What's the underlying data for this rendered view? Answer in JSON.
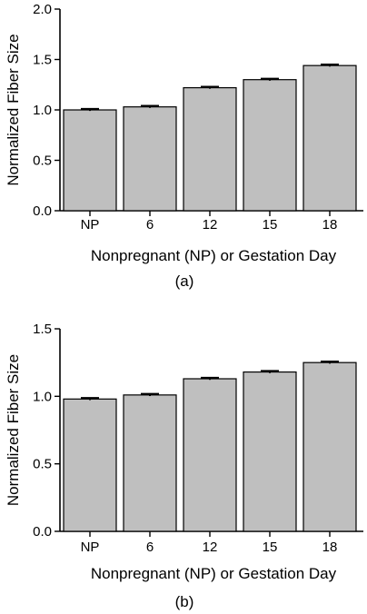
{
  "chart_data": [
    {
      "type": "bar",
      "panel_label": "(a)",
      "categories": [
        "NP",
        "6",
        "12",
        "15",
        "18"
      ],
      "values": [
        1.0,
        1.03,
        1.22,
        1.3,
        1.44
      ],
      "errors": [
        0.01,
        0.01,
        0.01,
        0.01,
        0.01
      ],
      "xlabel": "Nonpregnant (NP) or Gestation Day",
      "ylabel": "Normalized Fiber Size",
      "ylim": [
        0,
        2.0
      ],
      "yticks": [
        "0.0",
        "0.5",
        "1.0",
        "1.5",
        "2.0"
      ],
      "ytick_values": [
        0,
        0.5,
        1.0,
        1.5,
        2.0
      ],
      "bar_color": "#bfbfbf",
      "grid": false
    },
    {
      "type": "bar",
      "panel_label": "(b)",
      "categories": [
        "NP",
        "6",
        "12",
        "15",
        "18"
      ],
      "values": [
        0.98,
        1.01,
        1.13,
        1.18,
        1.25
      ],
      "errors": [
        0.008,
        0.008,
        0.008,
        0.008,
        0.008
      ],
      "xlabel": "Nonpregnant (NP) or Gestation Day",
      "ylabel": "Normalized Fiber Size",
      "ylim": [
        0,
        1.5
      ],
      "yticks": [
        "0.0",
        "0.5",
        "1.0",
        "1.5"
      ],
      "ytick_values": [
        0,
        0.5,
        1.0,
        1.5
      ],
      "bar_color": "#bfbfbf",
      "grid": false
    }
  ]
}
